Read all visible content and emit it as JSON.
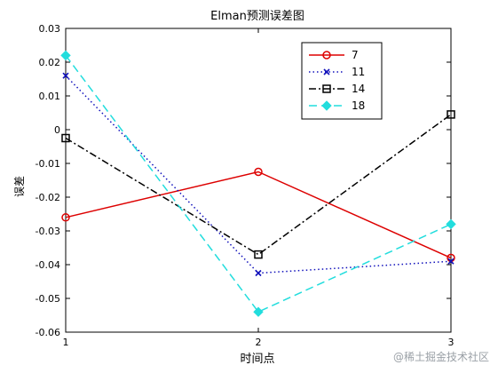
{
  "chart_data": {
    "type": "line",
    "title": "Elman预测误差图",
    "xlabel": "时间点",
    "ylabel": "误差",
    "x": [
      1,
      2,
      3
    ],
    "xlim": [
      1,
      3
    ],
    "ylim": [
      -0.06,
      0.03
    ],
    "xticks": [
      1,
      2,
      3
    ],
    "yticks": [
      -0.06,
      -0.05,
      -0.04,
      -0.03,
      -0.02,
      -0.01,
      0,
      0.01,
      0.02,
      0.03
    ],
    "grid": false,
    "legend_position": "top-right",
    "series": [
      {
        "name": "7",
        "values": [
          -0.026,
          -0.0125,
          -0.038
        ],
        "color": "#dd0000",
        "dash": "solid",
        "marker": "circle"
      },
      {
        "name": "11",
        "values": [
          0.016,
          -0.0425,
          -0.039
        ],
        "color": "#1010bb",
        "dash": "dotted",
        "marker": "x"
      },
      {
        "name": "14",
        "values": [
          -0.0025,
          -0.037,
          0.0045
        ],
        "color": "#000000",
        "dash": "dash-dot",
        "marker": "square"
      },
      {
        "name": "18",
        "values": [
          0.022,
          -0.054,
          -0.028
        ],
        "color": "#22dddd",
        "dash": "dashed",
        "marker": "diamond"
      }
    ]
  },
  "watermark": "@稀土掘金技术社区"
}
